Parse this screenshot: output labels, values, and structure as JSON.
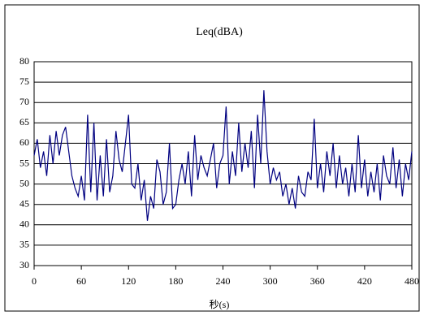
{
  "chart_data": {
    "type": "line",
    "title": "Leq(dBA)",
    "x_label": "秒(s)",
    "x": [
      0,
      4,
      8,
      12,
      16,
      20,
      24,
      28,
      32,
      36,
      40,
      44,
      48,
      52,
      56,
      60,
      64,
      68,
      72,
      76,
      80,
      84,
      88,
      92,
      96,
      100,
      104,
      108,
      112,
      116,
      120,
      124,
      128,
      132,
      136,
      140,
      144,
      148,
      152,
      156,
      160,
      164,
      168,
      172,
      176,
      180,
      184,
      188,
      192,
      196,
      200,
      204,
      208,
      212,
      216,
      220,
      224,
      228,
      232,
      236,
      240,
      244,
      248,
      252,
      256,
      260,
      264,
      268,
      272,
      276,
      280,
      284,
      288,
      292,
      296,
      300,
      304,
      308,
      312,
      316,
      320,
      324,
      328,
      332,
      336,
      340,
      344,
      348,
      352,
      356,
      360,
      364,
      368,
      372,
      376,
      380,
      384,
      388,
      392,
      396,
      400,
      404,
      408,
      412,
      416,
      420,
      424,
      428,
      432,
      436,
      440,
      444,
      448,
      452,
      456,
      460,
      464,
      468,
      472,
      476,
      480
    ],
    "series": [
      {
        "name": "Leq(dBA)",
        "color": "#000080",
        "values": [
          57,
          61,
          54,
          58,
          52,
          62,
          55,
          63,
          57,
          62,
          64,
          58,
          52,
          49,
          47,
          52,
          46,
          67,
          48,
          65,
          46,
          57,
          47,
          61,
          48,
          52,
          63,
          56,
          53,
          60,
          67,
          50,
          49,
          55,
          46,
          51,
          41,
          47,
          44,
          56,
          53,
          45,
          48,
          60,
          44,
          45,
          51,
          55,
          50,
          58,
          47,
          62,
          51,
          57,
          54,
          52,
          56,
          60,
          49,
          55,
          57,
          69,
          50,
          58,
          52,
          65,
          53,
          60,
          54,
          63,
          49,
          67,
          55,
          73,
          58,
          50,
          54,
          51,
          53,
          47,
          50,
          45,
          49,
          44,
          52,
          48,
          47,
          53,
          51,
          66,
          49,
          55,
          48,
          58,
          52,
          60,
          49,
          57,
          50,
          54,
          47,
          55,
          48,
          62,
          49,
          56,
          47,
          53,
          48,
          55,
          46,
          57,
          52,
          50,
          59,
          49,
          56,
          47,
          55,
          51,
          58
        ]
      }
    ],
    "xlim": [
      0,
      480
    ],
    "xticks": [
      0,
      60,
      120,
      180,
      240,
      300,
      360,
      420,
      480
    ],
    "ylim": [
      30,
      80
    ],
    "yticks": [
      30,
      35,
      40,
      45,
      50,
      55,
      60,
      65,
      70,
      75,
      80
    ],
    "grid": true
  }
}
